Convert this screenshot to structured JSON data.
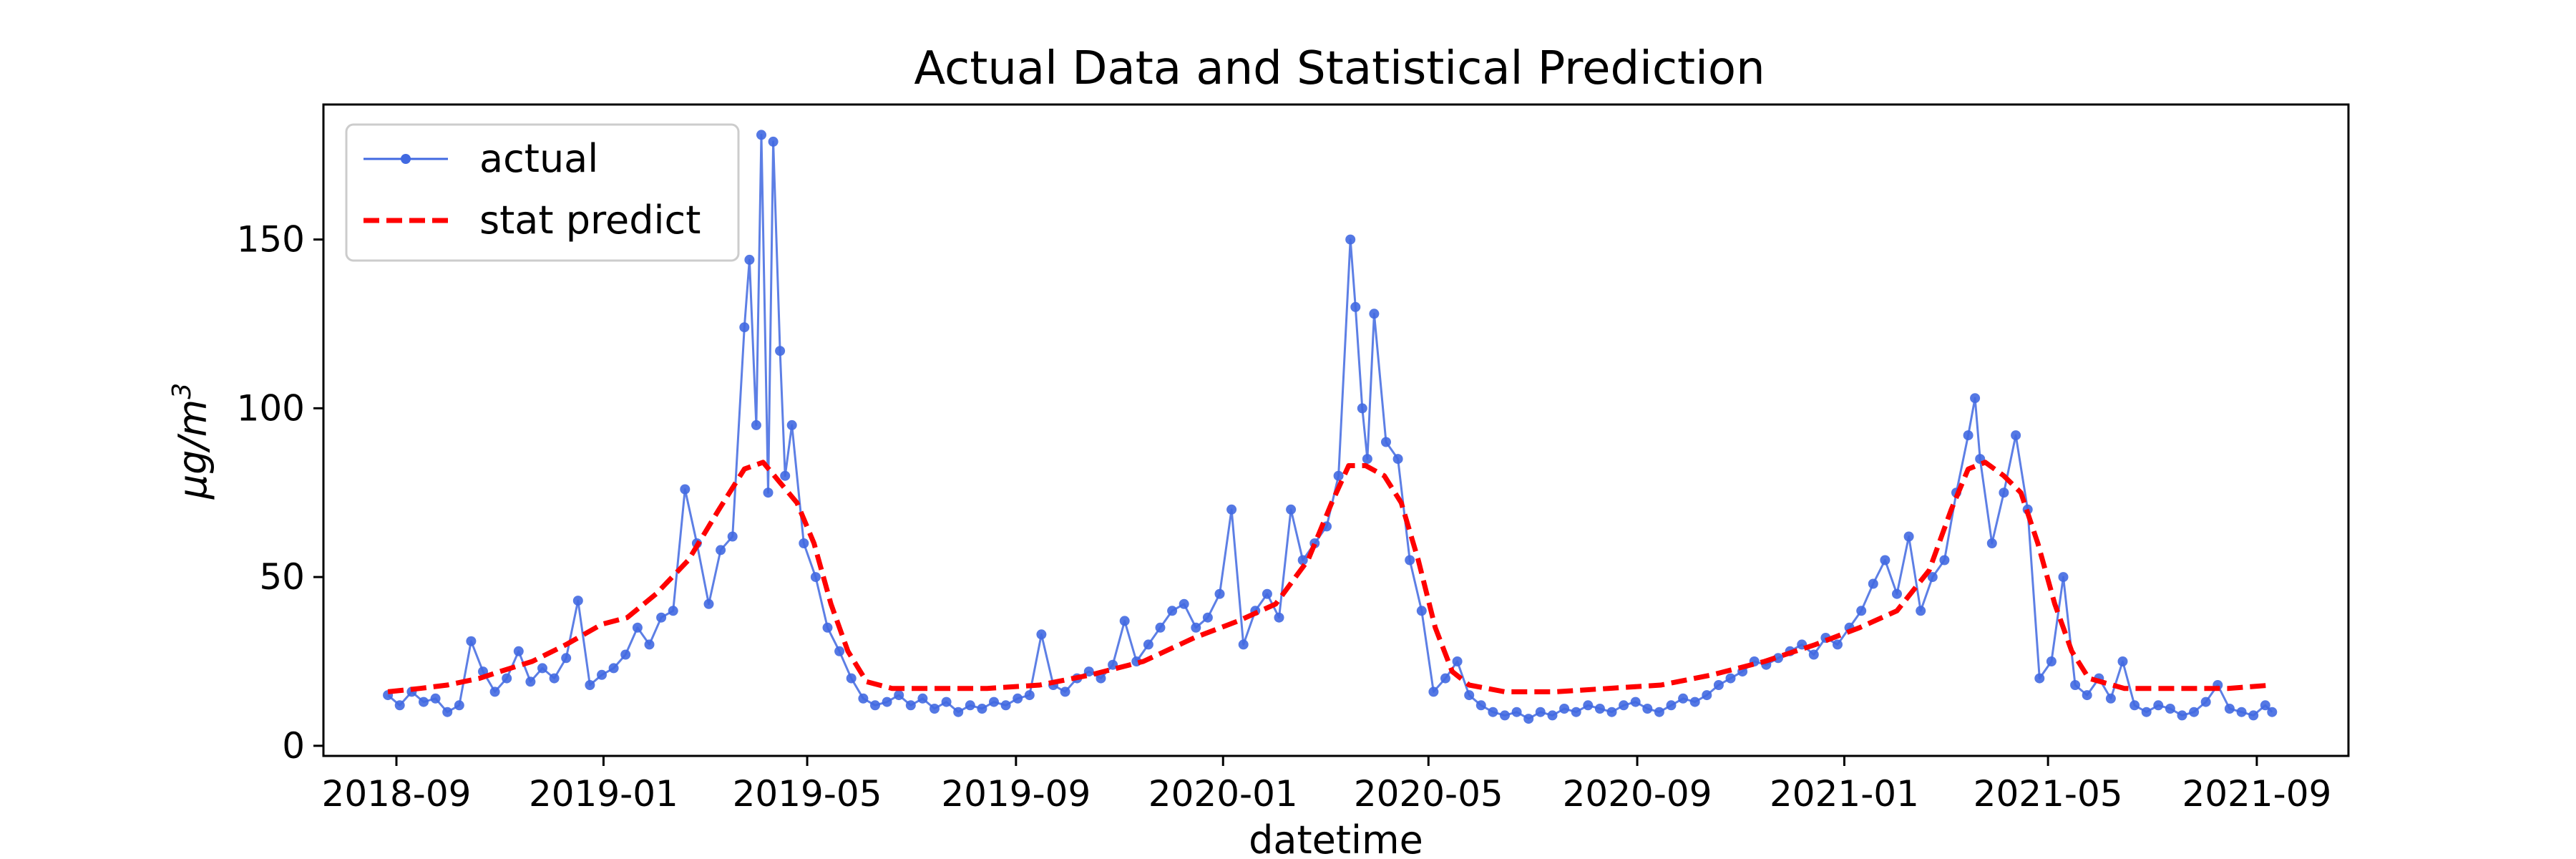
{
  "chart_data": {
    "type": "line",
    "title": "Actual Data and Statistical Prediction",
    "xlabel": "datetime",
    "ylabel": "μg/m",
    "ylabel_superscript": "3",
    "x_type": "date",
    "xlim": [
      "2018-07-20",
      "2021-10-25"
    ],
    "ylim": [
      -3,
      190
    ],
    "x_ticks": [
      "2018-09-01",
      "2019-01-01",
      "2019-05-01",
      "2019-09-01",
      "2020-01-01",
      "2020-05-01",
      "2020-09-01",
      "2021-01-01",
      "2021-05-01",
      "2021-09-01"
    ],
    "x_tick_labels": [
      "2018-09",
      "2019-01",
      "2019-05",
      "2019-09",
      "2020-01",
      "2020-05",
      "2020-09",
      "2021-01",
      "2021-05",
      "2021-09"
    ],
    "y_ticks": [
      0,
      50,
      100,
      150
    ],
    "grid": false,
    "legend_position": "top-left",
    "series": [
      {
        "name": "actual",
        "style": "line-markers",
        "color": "#4169e1",
        "points": [
          [
            "2018-08-27",
            15
          ],
          [
            "2018-09-03",
            12
          ],
          [
            "2018-09-10",
            16
          ],
          [
            "2018-09-17",
            13
          ],
          [
            "2018-09-24",
            14
          ],
          [
            "2018-10-01",
            10
          ],
          [
            "2018-10-08",
            12
          ],
          [
            "2018-10-15",
            31
          ],
          [
            "2018-10-22",
            22
          ],
          [
            "2018-10-29",
            16
          ],
          [
            "2018-11-05",
            20
          ],
          [
            "2018-11-12",
            28
          ],
          [
            "2018-11-19",
            19
          ],
          [
            "2018-11-26",
            23
          ],
          [
            "2018-12-03",
            20
          ],
          [
            "2018-12-10",
            26
          ],
          [
            "2018-12-17",
            43
          ],
          [
            "2018-12-24",
            18
          ],
          [
            "2018-12-31",
            21
          ],
          [
            "2019-01-07",
            23
          ],
          [
            "2019-01-14",
            27
          ],
          [
            "2019-01-21",
            35
          ],
          [
            "2019-01-28",
            30
          ],
          [
            "2019-02-04",
            38
          ],
          [
            "2019-02-11",
            40
          ],
          [
            "2019-02-18",
            76
          ],
          [
            "2019-02-25",
            60
          ],
          [
            "2019-03-04",
            42
          ],
          [
            "2019-03-11",
            58
          ],
          [
            "2019-03-18",
            62
          ],
          [
            "2019-03-25",
            124
          ],
          [
            "2019-03-28",
            144
          ],
          [
            "2019-04-01",
            95
          ],
          [
            "2019-04-04",
            181
          ],
          [
            "2019-04-08",
            75
          ],
          [
            "2019-04-11",
            179
          ],
          [
            "2019-04-15",
            117
          ],
          [
            "2019-04-18",
            80
          ],
          [
            "2019-04-22",
            95
          ],
          [
            "2019-04-29",
            60
          ],
          [
            "2019-05-06",
            50
          ],
          [
            "2019-05-13",
            35
          ],
          [
            "2019-05-20",
            28
          ],
          [
            "2019-05-27",
            20
          ],
          [
            "2019-06-03",
            14
          ],
          [
            "2019-06-10",
            12
          ],
          [
            "2019-06-17",
            13
          ],
          [
            "2019-06-24",
            15
          ],
          [
            "2019-07-01",
            12
          ],
          [
            "2019-07-08",
            14
          ],
          [
            "2019-07-15",
            11
          ],
          [
            "2019-07-22",
            13
          ],
          [
            "2019-07-29",
            10
          ],
          [
            "2019-08-05",
            12
          ],
          [
            "2019-08-12",
            11
          ],
          [
            "2019-08-19",
            13
          ],
          [
            "2019-08-26",
            12
          ],
          [
            "2019-09-02",
            14
          ],
          [
            "2019-09-09",
            15
          ],
          [
            "2019-09-16",
            33
          ],
          [
            "2019-09-23",
            18
          ],
          [
            "2019-09-30",
            16
          ],
          [
            "2019-10-07",
            20
          ],
          [
            "2019-10-14",
            22
          ],
          [
            "2019-10-21",
            20
          ],
          [
            "2019-10-28",
            24
          ],
          [
            "2019-11-04",
            37
          ],
          [
            "2019-11-11",
            25
          ],
          [
            "2019-11-18",
            30
          ],
          [
            "2019-11-25",
            35
          ],
          [
            "2019-12-02",
            40
          ],
          [
            "2019-12-09",
            42
          ],
          [
            "2019-12-16",
            35
          ],
          [
            "2019-12-23",
            38
          ],
          [
            "2019-12-30",
            45
          ],
          [
            "2020-01-06",
            70
          ],
          [
            "2020-01-13",
            30
          ],
          [
            "2020-01-20",
            40
          ],
          [
            "2020-01-27",
            45
          ],
          [
            "2020-02-03",
            38
          ],
          [
            "2020-02-10",
            70
          ],
          [
            "2020-02-17",
            55
          ],
          [
            "2020-02-24",
            60
          ],
          [
            "2020-03-02",
            65
          ],
          [
            "2020-03-09",
            80
          ],
          [
            "2020-03-16",
            150
          ],
          [
            "2020-03-19",
            130
          ],
          [
            "2020-03-23",
            100
          ],
          [
            "2020-03-26",
            85
          ],
          [
            "2020-03-30",
            128
          ],
          [
            "2020-04-06",
            90
          ],
          [
            "2020-04-13",
            85
          ],
          [
            "2020-04-20",
            55
          ],
          [
            "2020-04-27",
            40
          ],
          [
            "2020-05-04",
            16
          ],
          [
            "2020-05-11",
            20
          ],
          [
            "2020-05-18",
            25
          ],
          [
            "2020-05-25",
            15
          ],
          [
            "2020-06-01",
            12
          ],
          [
            "2020-06-08",
            10
          ],
          [
            "2020-06-15",
            9
          ],
          [
            "2020-06-22",
            10
          ],
          [
            "2020-06-29",
            8
          ],
          [
            "2020-07-06",
            10
          ],
          [
            "2020-07-13",
            9
          ],
          [
            "2020-07-20",
            11
          ],
          [
            "2020-07-27",
            10
          ],
          [
            "2020-08-03",
            12
          ],
          [
            "2020-08-10",
            11
          ],
          [
            "2020-08-17",
            10
          ],
          [
            "2020-08-24",
            12
          ],
          [
            "2020-08-31",
            13
          ],
          [
            "2020-09-07",
            11
          ],
          [
            "2020-09-14",
            10
          ],
          [
            "2020-09-21",
            12
          ],
          [
            "2020-09-28",
            14
          ],
          [
            "2020-10-05",
            13
          ],
          [
            "2020-10-12",
            15
          ],
          [
            "2020-10-19",
            18
          ],
          [
            "2020-10-26",
            20
          ],
          [
            "2020-11-02",
            22
          ],
          [
            "2020-11-09",
            25
          ],
          [
            "2020-11-16",
            24
          ],
          [
            "2020-11-23",
            26
          ],
          [
            "2020-11-30",
            28
          ],
          [
            "2020-12-07",
            30
          ],
          [
            "2020-12-14",
            27
          ],
          [
            "2020-12-21",
            32
          ],
          [
            "2020-12-28",
            30
          ],
          [
            "2021-01-04",
            35
          ],
          [
            "2021-01-11",
            40
          ],
          [
            "2021-01-18",
            48
          ],
          [
            "2021-01-25",
            55
          ],
          [
            "2021-02-01",
            45
          ],
          [
            "2021-02-08",
            62
          ],
          [
            "2021-02-15",
            40
          ],
          [
            "2021-02-22",
            50
          ],
          [
            "2021-03-01",
            55
          ],
          [
            "2021-03-08",
            75
          ],
          [
            "2021-03-15",
            92
          ],
          [
            "2021-03-19",
            103
          ],
          [
            "2021-03-22",
            85
          ],
          [
            "2021-03-29",
            60
          ],
          [
            "2021-04-05",
            75
          ],
          [
            "2021-04-12",
            92
          ],
          [
            "2021-04-19",
            70
          ],
          [
            "2021-04-26",
            20
          ],
          [
            "2021-05-03",
            25
          ],
          [
            "2021-05-10",
            50
          ],
          [
            "2021-05-17",
            18
          ],
          [
            "2021-05-24",
            15
          ],
          [
            "2021-05-31",
            20
          ],
          [
            "2021-06-07",
            14
          ],
          [
            "2021-06-14",
            25
          ],
          [
            "2021-06-21",
            12
          ],
          [
            "2021-06-28",
            10
          ],
          [
            "2021-07-05",
            12
          ],
          [
            "2021-07-12",
            11
          ],
          [
            "2021-07-19",
            9
          ],
          [
            "2021-07-26",
            10
          ],
          [
            "2021-08-02",
            13
          ],
          [
            "2021-08-09",
            18
          ],
          [
            "2021-08-16",
            11
          ],
          [
            "2021-08-23",
            10
          ],
          [
            "2021-08-30",
            9
          ],
          [
            "2021-09-06",
            12
          ],
          [
            "2021-09-10",
            10
          ]
        ]
      },
      {
        "name": "stat predict",
        "style": "dashed",
        "color": "#ff0000",
        "points": [
          [
            "2018-08-27",
            16
          ],
          [
            "2018-09-15",
            17
          ],
          [
            "2018-10-01",
            18
          ],
          [
            "2018-10-20",
            20
          ],
          [
            "2018-11-01",
            22
          ],
          [
            "2018-11-20",
            25
          ],
          [
            "2018-12-10",
            30
          ],
          [
            "2018-12-31",
            36
          ],
          [
            "2019-01-15",
            38
          ],
          [
            "2019-02-01",
            45
          ],
          [
            "2019-02-20",
            55
          ],
          [
            "2019-03-10",
            70
          ],
          [
            "2019-03-25",
            82
          ],
          [
            "2019-04-05",
            84
          ],
          [
            "2019-04-15",
            78
          ],
          [
            "2019-04-25",
            72
          ],
          [
            "2019-05-05",
            60
          ],
          [
            "2019-05-15",
            42
          ],
          [
            "2019-05-25",
            28
          ],
          [
            "2019-06-05",
            19
          ],
          [
            "2019-06-20",
            17
          ],
          [
            "2019-07-15",
            17
          ],
          [
            "2019-08-15",
            17
          ],
          [
            "2019-09-15",
            18
          ],
          [
            "2019-10-15",
            21
          ],
          [
            "2019-11-15",
            25
          ],
          [
            "2019-12-15",
            32
          ],
          [
            "2020-01-10",
            37
          ],
          [
            "2020-02-01",
            42
          ],
          [
            "2020-02-20",
            55
          ],
          [
            "2020-03-05",
            72
          ],
          [
            "2020-03-15",
            83
          ],
          [
            "2020-03-25",
            83
          ],
          [
            "2020-04-05",
            80
          ],
          [
            "2020-04-15",
            72
          ],
          [
            "2020-04-25",
            55
          ],
          [
            "2020-05-05",
            35
          ],
          [
            "2020-05-15",
            22
          ],
          [
            "2020-05-25",
            18
          ],
          [
            "2020-06-15",
            16
          ],
          [
            "2020-07-15",
            16
          ],
          [
            "2020-08-15",
            17
          ],
          [
            "2020-09-15",
            18
          ],
          [
            "2020-10-15",
            21
          ],
          [
            "2020-11-15",
            25
          ],
          [
            "2020-12-15",
            30
          ],
          [
            "2021-01-10",
            35
          ],
          [
            "2021-02-01",
            40
          ],
          [
            "2021-02-20",
            52
          ],
          [
            "2021-03-05",
            70
          ],
          [
            "2021-03-15",
            82
          ],
          [
            "2021-03-25",
            84
          ],
          [
            "2021-04-05",
            80
          ],
          [
            "2021-04-15",
            75
          ],
          [
            "2021-04-25",
            60
          ],
          [
            "2021-05-05",
            42
          ],
          [
            "2021-05-15",
            28
          ],
          [
            "2021-05-25",
            20
          ],
          [
            "2021-06-15",
            17
          ],
          [
            "2021-07-15",
            17
          ],
          [
            "2021-08-15",
            17
          ],
          [
            "2021-09-10",
            18
          ]
        ]
      }
    ]
  }
}
